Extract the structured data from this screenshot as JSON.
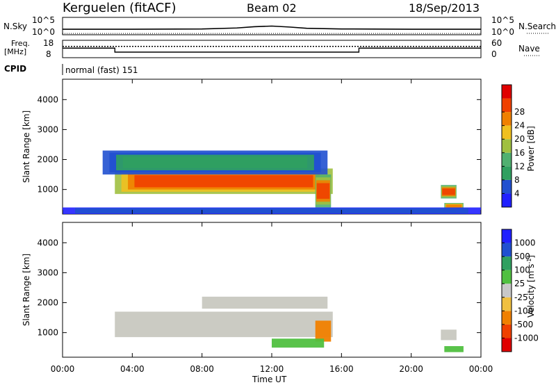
{
  "header": {
    "station": "Kerguelen (fitACF)",
    "beam": "Beam 02",
    "date": "18/Sep/2013"
  },
  "colors": {
    "power_scale": [
      "#2020ff",
      "#2050d0",
      "#30a060",
      "#50b070",
      "#a0c040",
      "#f0c020",
      "#f08000",
      "#f04000",
      "#e00000"
    ],
    "velocity_scale": [
      "#2020ff",
      "#2050d0",
      "#30a060",
      "#50c040",
      "#c8c8c8",
      "#f0c040",
      "#f08000",
      "#f04000",
      "#e00000"
    ],
    "ground_scatter": "#c8c8c0"
  },
  "chart_data": [
    {
      "type": "line",
      "panel": "sky-noise",
      "left_label": "N.Sky",
      "right_label": "N.Search",
      "left_ticks": [
        "10^5",
        "10^0"
      ],
      "right_ticks": [
        "10^5",
        "10^0"
      ],
      "x": [
        "00:00",
        "04:00",
        "08:00",
        "10:00",
        "11:00",
        "12:00",
        "13:00",
        "14:00",
        "16:00",
        "20:00",
        "24:00"
      ],
      "series": [
        {
          "values": [
            1.5,
            1.5,
            1.6,
            1.9,
            2.3,
            2.5,
            2.2,
            1.8,
            1.6,
            1.5,
            1.5
          ]
        },
        {
          "values": [
            0.2,
            0.2,
            0.2,
            0.2,
            0.2,
            0.2,
            0.2,
            0.2,
            0.2,
            0.2,
            0.2
          ]
        }
      ]
    },
    {
      "type": "line",
      "panel": "frequency",
      "left_label": "Freq.\n[MHz]",
      "right_label": "Nave",
      "left_ticks": [
        "18",
        "8"
      ],
      "right_ticks": [
        "60",
        "0"
      ],
      "series": [
        {
          "x": [
            "00:00",
            "03:00",
            "03:00",
            "17:00",
            "17:00",
            "24:00"
          ],
          "values": [
            13.5,
            13.5,
            11.2,
            11.2,
            13.5,
            13.5
          ]
        },
        {
          "x": [
            "00:00",
            "24:00"
          ],
          "values": [
            14.5,
            14.5
          ]
        }
      ]
    },
    {
      "type": "text",
      "panel": "cpid",
      "label": "CPID",
      "value": "normal (fast) 151"
    },
    {
      "type": "heatmap",
      "panel": "power",
      "ylabel": "Slant Range [km]",
      "yticks": [
        1000,
        2000,
        3000,
        4000
      ],
      "ylim": [
        180,
        4680
      ],
      "colorbar_label": "Power [dB]",
      "colorbar_ticks": [
        4,
        8,
        12,
        16,
        20,
        24,
        28
      ],
      "colorbar_range": [
        0,
        32
      ],
      "regions": [
        {
          "start_hour": 3.0,
          "end_hour": 15.5,
          "range_min": 850,
          "range_max": 1700,
          "peak_db": 28
        },
        {
          "start_hour": 2.3,
          "end_hour": 15.2,
          "range_min": 1500,
          "range_max": 2300,
          "peak_db": 10
        },
        {
          "start_hour": 14.5,
          "end_hour": 15.4,
          "range_min": 400,
          "range_max": 1500,
          "peak_db": 26
        },
        {
          "start_hour": 21.7,
          "end_hour": 22.6,
          "range_min": 700,
          "range_max": 1150,
          "peak_db": 26
        },
        {
          "start_hour": 21.9,
          "end_hour": 23.0,
          "range_min": 350,
          "range_max": 550,
          "peak_db": 24
        },
        {
          "start_hour": 0.0,
          "end_hour": 24.0,
          "range_min": 180,
          "range_max": 400,
          "peak_db": 6
        }
      ]
    },
    {
      "type": "heatmap",
      "panel": "velocity",
      "ylabel": "Slant Range [km]",
      "yticks": [
        1000,
        2000,
        3000,
        4000
      ],
      "ylim": [
        180,
        4680
      ],
      "xlabel": "Time UT",
      "xticks": [
        "00:00",
        "04:00",
        "08:00",
        "12:00",
        "16:00",
        "20:00",
        "00:00"
      ],
      "colorbar_label": "Velocity [m s^-1]",
      "colorbar_ticks": [
        1000,
        500,
        100,
        25,
        -25,
        -100,
        -500,
        -1000
      ],
      "regions": [
        {
          "start_hour": 3.0,
          "end_hour": 15.5,
          "range_min": 850,
          "range_max": 1700,
          "velocity": 0,
          "ground_scatter": true
        },
        {
          "start_hour": 8.0,
          "end_hour": 15.2,
          "range_min": 1800,
          "range_max": 2200,
          "velocity": 0,
          "ground_scatter": true
        },
        {
          "start_hour": 14.5,
          "end_hour": 15.4,
          "range_min": 700,
          "range_max": 1400,
          "velocity": -500
        },
        {
          "start_hour": 12.0,
          "end_hour": 15.0,
          "range_min": 500,
          "range_max": 800,
          "velocity": 100
        },
        {
          "start_hour": 21.7,
          "end_hour": 22.6,
          "range_min": 750,
          "range_max": 1100,
          "velocity": 0,
          "ground_scatter": true
        },
        {
          "start_hour": 21.9,
          "end_hour": 23.0,
          "range_min": 350,
          "range_max": 550,
          "velocity": 100
        }
      ]
    }
  ]
}
